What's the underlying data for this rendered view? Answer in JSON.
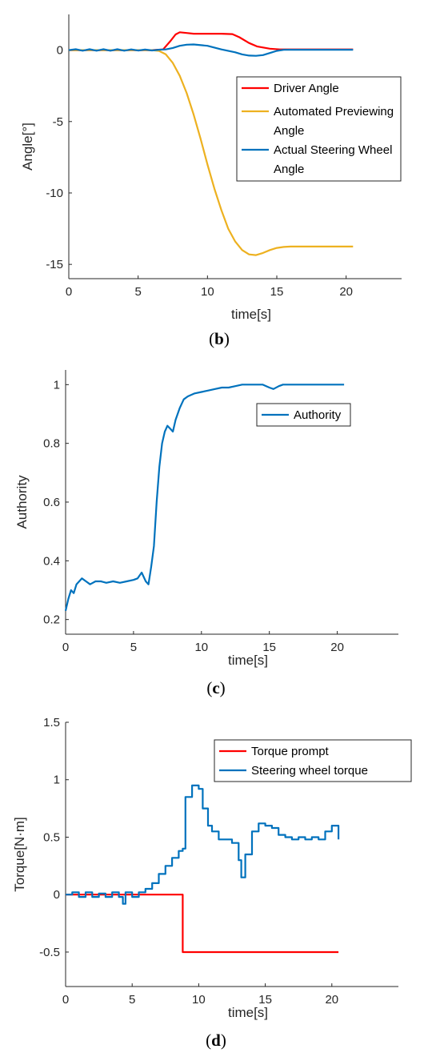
{
  "chart_data": [
    {
      "type": "line",
      "panel": "b",
      "caption_open": "(",
      "caption_letter": "b",
      "caption_close": ")",
      "xlabel": "time[s]",
      "ylabel": "Angle[°]",
      "xlim": [
        0,
        24
      ],
      "ylim": [
        -16,
        2.5
      ],
      "xticks": [
        0,
        5,
        10,
        15,
        20
      ],
      "yticks": [
        0,
        -5,
        -10,
        -15
      ],
      "grid": false,
      "legend_position": "right",
      "series": [
        {
          "name": "Driver Angle",
          "color": "#ff0000",
          "x": [
            0,
            1,
            2,
            3,
            4,
            5,
            6,
            6.8,
            7.3,
            7.7,
            8.0,
            8.5,
            9,
            10,
            11,
            11.8,
            12.3,
            13,
            13.6,
            14.5,
            15.2,
            16,
            18,
            20.5
          ],
          "y": [
            0,
            0,
            0,
            0,
            0,
            0,
            0,
            0.05,
            0.6,
            1.1,
            1.25,
            1.2,
            1.15,
            1.15,
            1.15,
            1.12,
            0.9,
            0.5,
            0.25,
            0.1,
            0.05,
            0.05,
            0.05,
            0.05
          ]
        },
        {
          "name": "Automated Previewing Angle",
          "color": "#edb120",
          "x": [
            0,
            2,
            4,
            6,
            6.5,
            7,
            7.5,
            8,
            8.5,
            9,
            9.5,
            10,
            10.5,
            11,
            11.5,
            12,
            12.5,
            13,
            13.5,
            14,
            14.5,
            15,
            15.5,
            16,
            18,
            20.5
          ],
          "y": [
            0,
            0,
            0,
            0,
            -0.05,
            -0.3,
            -0.9,
            -1.8,
            -3.0,
            -4.5,
            -6.2,
            -8.0,
            -9.7,
            -11.2,
            -12.5,
            -13.4,
            -14.0,
            -14.3,
            -14.35,
            -14.2,
            -14.0,
            -13.85,
            -13.78,
            -13.75,
            -13.75,
            -13.75
          ]
        },
        {
          "name": "Actual Steering Wheel Angle",
          "color": "#0072bd",
          "x": [
            0,
            0.5,
            1,
            1.5,
            2,
            2.5,
            3,
            3.5,
            4,
            4.5,
            5,
            5.5,
            6,
            6.5,
            7,
            7.5,
            8,
            8.5,
            9,
            10,
            11,
            12,
            12.5,
            13,
            13.5,
            14,
            14.5,
            15,
            15.5,
            16,
            18,
            20.5
          ],
          "y": [
            0,
            0.06,
            -0.04,
            0.06,
            -0.04,
            0.06,
            -0.04,
            0.06,
            -0.04,
            0.05,
            -0.03,
            0.04,
            -0.02,
            0.03,
            0.05,
            0.15,
            0.3,
            0.38,
            0.4,
            0.3,
            0.05,
            -0.15,
            -0.3,
            -0.38,
            -0.4,
            -0.35,
            -0.2,
            -0.05,
            0.02,
            0.03,
            0.03,
            0.03
          ]
        }
      ]
    },
    {
      "type": "line",
      "panel": "c",
      "caption_open": "(",
      "caption_letter": "c",
      "caption_close": ")",
      "xlabel": "time[s]",
      "ylabel": "Authority",
      "xlim": [
        0,
        24.5
      ],
      "ylim": [
        0.15,
        1.05
      ],
      "xticks": [
        0,
        5,
        10,
        15,
        20
      ],
      "yticks": [
        0.2,
        0.4,
        0.6,
        0.8,
        1
      ],
      "grid": false,
      "legend_position": "top-right",
      "series": [
        {
          "name": "Authority",
          "color": "#0072bd",
          "x": [
            0,
            0.2,
            0.4,
            0.6,
            0.8,
            1.0,
            1.2,
            1.5,
            1.8,
            2.2,
            2.6,
            3,
            3.5,
            4,
            4.5,
            5,
            5.3,
            5.6,
            5.9,
            6.1,
            6.3,
            6.5,
            6.7,
            6.9,
            7.1,
            7.3,
            7.5,
            7.7,
            7.9,
            8.1,
            8.4,
            8.7,
            9,
            9.5,
            10,
            10.5,
            11,
            11.5,
            12,
            12.5,
            13,
            13.5,
            14,
            14.5,
            15,
            15.3,
            15.7,
            16,
            17,
            18,
            19,
            20,
            20.5
          ],
          "y": [
            0.23,
            0.27,
            0.3,
            0.29,
            0.32,
            0.33,
            0.34,
            0.33,
            0.32,
            0.33,
            0.33,
            0.325,
            0.33,
            0.325,
            0.33,
            0.335,
            0.34,
            0.36,
            0.33,
            0.32,
            0.38,
            0.45,
            0.6,
            0.72,
            0.8,
            0.84,
            0.86,
            0.85,
            0.84,
            0.88,
            0.92,
            0.95,
            0.96,
            0.97,
            0.975,
            0.98,
            0.985,
            0.99,
            0.99,
            0.995,
            1.0,
            1.0,
            1.0,
            1.0,
            0.99,
            0.985,
            0.995,
            1.0,
            1.0,
            1.0,
            1.0,
            1.0,
            1.0
          ]
        }
      ]
    },
    {
      "type": "line",
      "panel": "d",
      "caption_open": "(",
      "caption_letter": "d",
      "caption_close": ")",
      "xlabel": "time[s]",
      "ylabel": "Torque[N·m]",
      "xlim": [
        0,
        25
      ],
      "ylim": [
        -0.8,
        1.5
      ],
      "xticks": [
        0,
        5,
        10,
        15,
        20
      ],
      "yticks": [
        1.5,
        1,
        0.5,
        0,
        -0.5
      ],
      "grid": false,
      "legend_position": "top-right",
      "series": [
        {
          "name": "Torque prompt",
          "color": "#ff0000",
          "step": true,
          "x": [
            0,
            8.8,
            8.8,
            20.5
          ],
          "y": [
            0,
            0,
            -0.5,
            -0.5
          ]
        },
        {
          "name": "Steering wheel torque",
          "color": "#0072bd",
          "step": true,
          "x": [
            0,
            0.5,
            1,
            1.5,
            2,
            2.5,
            3,
            3.5,
            4,
            4.3,
            4.5,
            5,
            5.5,
            6,
            6.5,
            7,
            7.5,
            8,
            8.5,
            8.8,
            9.0,
            9.5,
            10,
            10.3,
            10.7,
            11,
            11.5,
            12,
            12.5,
            13,
            13.2,
            13.5,
            14,
            14.5,
            15,
            15.5,
            16,
            16.5,
            17,
            17.5,
            18,
            18.5,
            19,
            19.5,
            20,
            20.5
          ],
          "y": [
            0,
            0.02,
            -0.02,
            0.02,
            -0.02,
            0.01,
            -0.02,
            0.02,
            -0.02,
            -0.08,
            0.02,
            -0.02,
            0.02,
            0.05,
            0.1,
            0.18,
            0.25,
            0.32,
            0.38,
            0.4,
            0.85,
            0.95,
            0.92,
            0.75,
            0.6,
            0.55,
            0.48,
            0.48,
            0.45,
            0.3,
            0.15,
            0.35,
            0.55,
            0.62,
            0.6,
            0.58,
            0.52,
            0.5,
            0.48,
            0.5,
            0.48,
            0.5,
            0.48,
            0.55,
            0.6,
            0.48
          ]
        }
      ]
    }
  ]
}
